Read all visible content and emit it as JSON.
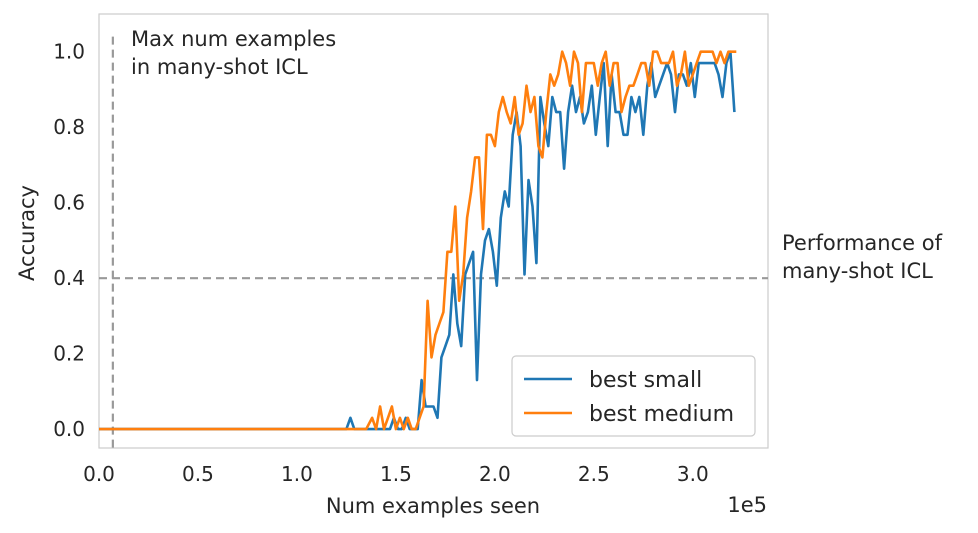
{
  "chart_data": {
    "type": "line",
    "xlabel": "Num examples seen",
    "ylabel": "Accuracy",
    "x_offset_label": "1e5",
    "xlim": [
      0,
      3.38
    ],
    "ylim": [
      -0.05,
      1.1
    ],
    "x_ticks": [
      {
        "value": 0.0,
        "label": "0.0"
      },
      {
        "value": 0.5,
        "label": "0.5"
      },
      {
        "value": 1.0,
        "label": "1.0"
      },
      {
        "value": 1.5,
        "label": "1.5"
      },
      {
        "value": 2.0,
        "label": "2.0"
      },
      {
        "value": 2.5,
        "label": "2.5"
      },
      {
        "value": 3.0,
        "label": "3.0"
      }
    ],
    "y_ticks": [
      {
        "value": 0.0,
        "label": "0.0"
      },
      {
        "value": 0.2,
        "label": "0.2"
      },
      {
        "value": 0.4,
        "label": "0.4"
      },
      {
        "value": 0.6,
        "label": "0.6"
      },
      {
        "value": 0.8,
        "label": "0.8"
      },
      {
        "value": 1.0,
        "label": "1.0"
      }
    ],
    "grid": false,
    "legend_position": "lower-right",
    "series": [
      {
        "name": "best small",
        "color": "#1f77b4",
        "x": [
          0.0,
          1.25,
          1.27,
          1.29,
          1.31,
          1.35,
          1.4,
          1.45,
          1.47,
          1.49,
          1.51,
          1.53,
          1.55,
          1.57,
          1.59,
          1.61,
          1.63,
          1.65,
          1.67,
          1.69,
          1.71,
          1.73,
          1.75,
          1.77,
          1.79,
          1.81,
          1.83,
          1.85,
          1.87,
          1.89,
          1.91,
          1.93,
          1.95,
          1.97,
          1.99,
          2.01,
          2.03,
          2.05,
          2.07,
          2.09,
          2.11,
          2.13,
          2.15,
          2.17,
          2.19,
          2.21,
          2.23,
          2.25,
          2.27,
          2.29,
          2.31,
          2.33,
          2.35,
          2.37,
          2.39,
          2.41,
          2.43,
          2.45,
          2.47,
          2.49,
          2.51,
          2.53,
          2.55,
          2.57,
          2.59,
          2.61,
          2.63,
          2.65,
          2.67,
          2.69,
          2.71,
          2.73,
          2.75,
          2.77,
          2.79,
          2.81,
          2.83,
          2.85,
          2.87,
          2.89,
          2.91,
          2.93,
          2.95,
          2.97,
          2.99,
          3.01,
          3.03,
          3.05,
          3.07,
          3.09,
          3.11,
          3.13,
          3.15,
          3.17,
          3.19,
          3.21
        ],
        "y": [
          0.0,
          0.0,
          0.03,
          0.0,
          0.0,
          0.0,
          0.0,
          0.0,
          0.0,
          0.03,
          0.0,
          0.0,
          0.03,
          0.0,
          0.0,
          0.0,
          0.13,
          0.06,
          0.06,
          0.06,
          0.03,
          0.19,
          0.22,
          0.25,
          0.41,
          0.28,
          0.22,
          0.41,
          0.44,
          0.47,
          0.13,
          0.41,
          0.5,
          0.53,
          0.47,
          0.38,
          0.56,
          0.63,
          0.59,
          0.78,
          0.84,
          0.75,
          0.41,
          0.66,
          0.59,
          0.44,
          0.88,
          0.81,
          0.75,
          0.88,
          0.84,
          0.84,
          0.69,
          0.84,
          0.91,
          0.84,
          0.88,
          0.81,
          0.84,
          0.91,
          0.78,
          0.88,
          0.97,
          0.75,
          0.94,
          0.84,
          0.84,
          0.78,
          0.78,
          0.88,
          0.84,
          0.88,
          0.78,
          0.91,
          0.97,
          0.88,
          0.91,
          0.94,
          0.97,
          0.94,
          0.84,
          0.94,
          0.94,
          0.91,
          0.97,
          0.88,
          0.97,
          0.97,
          0.97,
          0.97,
          0.97,
          0.94,
          0.88,
          0.97,
          1.0,
          0.84
        ]
      },
      {
        "name": "best medium",
        "color": "#ff7f0e",
        "x": [
          0.0,
          1.35,
          1.38,
          1.4,
          1.42,
          1.44,
          1.46,
          1.48,
          1.5,
          1.52,
          1.54,
          1.56,
          1.58,
          1.6,
          1.62,
          1.64,
          1.66,
          1.68,
          1.7,
          1.72,
          1.74,
          1.76,
          1.78,
          1.8,
          1.82,
          1.84,
          1.86,
          1.88,
          1.9,
          1.92,
          1.94,
          1.96,
          1.98,
          2.0,
          2.02,
          2.04,
          2.06,
          2.08,
          2.1,
          2.12,
          2.14,
          2.16,
          2.18,
          2.2,
          2.22,
          2.24,
          2.26,
          2.28,
          2.3,
          2.32,
          2.34,
          2.36,
          2.38,
          2.4,
          2.42,
          2.44,
          2.46,
          2.48,
          2.5,
          2.52,
          2.54,
          2.56,
          2.58,
          2.6,
          2.62,
          2.64,
          2.66,
          2.68,
          2.7,
          2.72,
          2.74,
          2.76,
          2.78,
          2.8,
          2.82,
          2.84,
          2.86,
          2.88,
          2.9,
          2.92,
          2.94,
          2.96,
          2.98,
          3.0,
          3.02,
          3.04,
          3.06,
          3.08,
          3.1,
          3.12,
          3.14,
          3.16,
          3.18,
          3.2,
          3.22
        ],
        "y": [
          0.0,
          0.0,
          0.03,
          0.0,
          0.06,
          0.0,
          0.03,
          0.06,
          0.0,
          0.03,
          0.0,
          0.03,
          0.0,
          0.0,
          0.03,
          0.06,
          0.34,
          0.19,
          0.25,
          0.28,
          0.31,
          0.47,
          0.47,
          0.59,
          0.34,
          0.41,
          0.56,
          0.63,
          0.72,
          0.72,
          0.53,
          0.78,
          0.78,
          0.75,
          0.84,
          0.88,
          0.84,
          0.81,
          0.88,
          0.78,
          0.81,
          0.91,
          0.84,
          0.88,
          0.75,
          0.72,
          0.84,
          0.94,
          0.91,
          0.94,
          1.0,
          0.97,
          0.91,
          1.0,
          0.97,
          0.84,
          0.97,
          0.97,
          0.97,
          0.91,
          0.97,
          1.0,
          0.91,
          0.97,
          0.97,
          0.84,
          0.88,
          0.91,
          0.91,
          0.94,
          0.97,
          0.97,
          0.91,
          1.0,
          1.0,
          0.97,
          0.97,
          0.97,
          1.0,
          0.91,
          0.94,
          1.0,
          0.91,
          0.94,
          0.97,
          1.0,
          1.0,
          1.0,
          1.0,
          0.97,
          1.0,
          0.97,
          1.0,
          1.0,
          1.0
        ]
      }
    ],
    "annotations": [
      {
        "id": "vline",
        "type": "vertical-dashed-line",
        "x": 0.07,
        "y_top": 1.04,
        "label_lines": [
          "Max num examples",
          "in many-shot ICL"
        ]
      },
      {
        "id": "hline",
        "type": "horizontal-dashed-line",
        "y": 0.4,
        "label_lines": [
          "Performance of",
          "many-shot ICL"
        ]
      }
    ]
  }
}
